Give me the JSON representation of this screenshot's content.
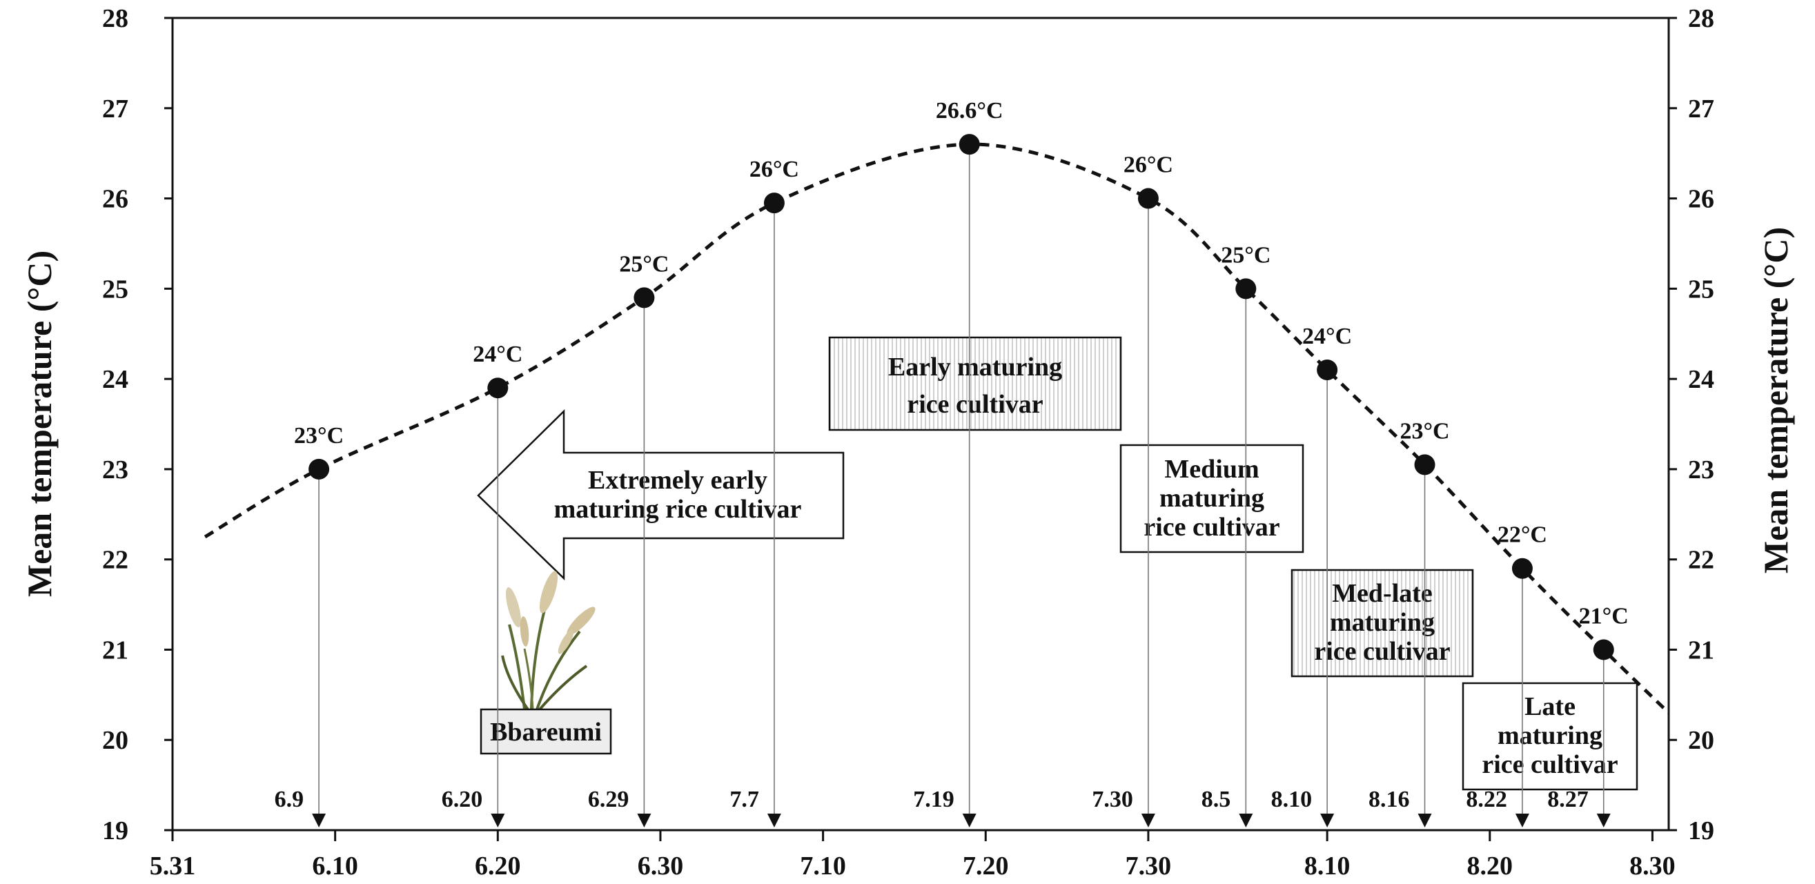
{
  "chart_data": {
    "type": "scatter",
    "title": "",
    "xlabel": "",
    "ylabel": "Mean temperature (°C)",
    "ylabel_right": "Mean temperature (°C)",
    "ylim": [
      19,
      28
    ],
    "y_ticks": [
      "19",
      "20",
      "21",
      "22",
      "23",
      "24",
      "25",
      "26",
      "27",
      "28"
    ],
    "x_ticks": [
      "5.31",
      "6.10",
      "6.20",
      "6.30",
      "7.10",
      "7.20",
      "7.30",
      "8.10",
      "8.20",
      "8.30"
    ],
    "grid": false,
    "series": [
      {
        "x": [
          "6.9",
          "6.20",
          "6.29",
          "7.7",
          "7.19",
          "7.30",
          "8.5",
          "8.10",
          "8.16",
          "8.22",
          "8.27"
        ],
        "y": [
          23.0,
          23.9,
          24.9,
          25.95,
          26.6,
          26.0,
          25.0,
          24.1,
          23.05,
          21.9,
          21.0
        ],
        "point_labels": [
          "23°C",
          "24°C",
          "25°C",
          "26°C",
          "26.6°C",
          "26°C",
          "25°C",
          "24°C",
          "23°C",
          "22°C",
          "21°C"
        ],
        "date_labels": [
          "6.9",
          "6.20",
          "6.29",
          "7.7",
          "7.19",
          "7.30",
          "8.5",
          "8.10",
          "8.16",
          "8.22",
          "8.27"
        ]
      }
    ],
    "trend_curve": {
      "x": [
        "6.2",
        "6.9",
        "6.20",
        "6.29",
        "7.7",
        "7.19",
        "7.30",
        "8.5",
        "8.10",
        "8.16",
        "8.22",
        "8.27",
        "8.31"
      ],
      "y": [
        22.25,
        23.0,
        23.9,
        24.9,
        25.95,
        26.6,
        26.0,
        25.0,
        24.1,
        23.05,
        21.9,
        21.0,
        20.3
      ]
    },
    "annotations": {
      "extremely_early": "Extremely early maturing rice cultivar",
      "early": "Early maturing rice cultivar",
      "medium": "Medium maturing rice cultivar",
      "med_late": "Med-late maturing rice cultivar",
      "late": "Late maturing rice cultivar",
      "plant": "Bbareumi"
    }
  }
}
